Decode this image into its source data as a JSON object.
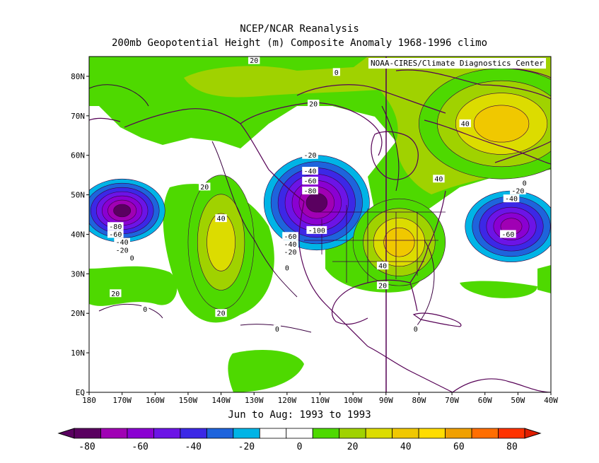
{
  "title_line1": "NCEP/NCAR Reanalysis",
  "title_line2": "200mb Geopotential Height (m) Composite Anomaly 1968-1996 climo",
  "credit": "NOAA-CIRES/Climate Diagnostics Center",
  "subtitle": "Jun to Aug: 1993 to 1993",
  "lat_ticks": [
    "80N",
    "70N",
    "60N",
    "50N",
    "40N",
    "30N",
    "20N",
    "10N",
    "EQ"
  ],
  "lon_ticks": [
    "180",
    "170W",
    "160W",
    "150W",
    "140W",
    "130W",
    "120W",
    "110W",
    "100W",
    "90W",
    "80W",
    "70W",
    "60W",
    "50W",
    "40W"
  ],
  "colorbar": {
    "tick_labels": [
      "-80",
      "-60",
      "-40",
      "-20",
      "0",
      "20",
      "40",
      "60",
      "80"
    ],
    "colors": [
      "#5a0060",
      "#a000b4",
      "#8a00d2",
      "#6c14e6",
      "#3c28e6",
      "#1e64dc",
      "#00b4e6",
      "#ffffff",
      "#ffffff",
      "#4ed900",
      "#a0d200",
      "#dcdc00",
      "#f0c800",
      "#ffdc00",
      "#f0a000",
      "#ff6e00",
      "#ff3200"
    ]
  },
  "contour_labels": [
    {
      "text": "20",
      "lon": -112,
      "lat": 73
    },
    {
      "text": "20",
      "lon": -130,
      "lat": 84
    },
    {
      "text": "0",
      "lon": -105,
      "lat": 81
    },
    {
      "text": "-20",
      "lon": -113,
      "lat": 60
    },
    {
      "text": "-40",
      "lon": -113,
      "lat": 56
    },
    {
      "text": "-60",
      "lon": -113,
      "lat": 53.5
    },
    {
      "text": "-80",
      "lon": -113,
      "lat": 51
    },
    {
      "text": "-100",
      "lon": -111,
      "lat": 41
    },
    {
      "text": "-60",
      "lon": -119,
      "lat": 39.5
    },
    {
      "text": "-40",
      "lon": -119,
      "lat": 37.5
    },
    {
      "text": "-20",
      "lon": -119,
      "lat": 35.5
    },
    {
      "text": "0",
      "lon": -120,
      "lat": 31.5
    },
    {
      "text": "40",
      "lon": -91,
      "lat": 32
    },
    {
      "text": "20",
      "lon": -91,
      "lat": 27
    },
    {
      "text": "20",
      "lon": -145,
      "lat": 52
    },
    {
      "text": "40",
      "lon": -140,
      "lat": 44
    },
    {
      "text": "20",
      "lon": -140,
      "lat": 20
    },
    {
      "text": "20",
      "lon": -172,
      "lat": 25
    },
    {
      "text": "0",
      "lon": -163,
      "lat": 21
    },
    {
      "text": "0",
      "lon": -123,
      "lat": 16
    },
    {
      "text": "0",
      "lon": -81,
      "lat": 16
    },
    {
      "text": "-80",
      "lon": -172,
      "lat": 42
    },
    {
      "text": "-60",
      "lon": -172,
      "lat": 40
    },
    {
      "text": "-40",
      "lon": -170,
      "lat": 38
    },
    {
      "text": "-20",
      "lon": -170,
      "lat": 36
    },
    {
      "text": "0",
      "lon": -167,
      "lat": 34
    },
    {
      "text": "40",
      "lon": -66,
      "lat": 68
    },
    {
      "text": "40",
      "lon": -74,
      "lat": 54
    },
    {
      "text": "0",
      "lon": -48,
      "lat": 53
    },
    {
      "text": "-20",
      "lon": -50,
      "lat": 51
    },
    {
      "text": "-40",
      "lon": -52,
      "lat": 49
    },
    {
      "text": "-60",
      "lon": -53,
      "lat": 40
    }
  ],
  "regions": [
    {
      "name": "low-west-pacific",
      "lon": -170,
      "lat": 46,
      "rx": 13,
      "ry": 8,
      "sign": "neg",
      "levels": [
        "#00b4e6",
        "#1e64dc",
        "#3c28e6",
        "#6c14e6",
        "#8a00d2",
        "#a000b4",
        "#5a0060"
      ]
    },
    {
      "name": "low-northwest-us",
      "lon": -111,
      "lat": 48,
      "rx": 16,
      "ry": 12,
      "sign": "neg",
      "levels": [
        "#00b4e6",
        "#1e64dc",
        "#3c28e6",
        "#6c14e6",
        "#8a00d2",
        "#a000b4",
        "#5a0060"
      ]
    },
    {
      "name": "low-north-atlantic",
      "lon": -52,
      "lat": 42,
      "rx": 14,
      "ry": 9,
      "sign": "neg",
      "levels": [
        "#00b4e6",
        "#1e64dc",
        "#3c28e6",
        "#6c14e6",
        "#8a00d2",
        "#a000b4"
      ]
    },
    {
      "name": "high-pacific",
      "lon": -140,
      "lat": 38,
      "rx": 10,
      "ry": 17,
      "sign": "pos",
      "levels": [
        "#4ed900",
        "#a0d200",
        "#dcdc00"
      ]
    },
    {
      "name": "high-southeast-us",
      "lon": -86,
      "lat": 38,
      "rx": 14,
      "ry": 11,
      "sign": "pos",
      "levels": [
        "#4ed900",
        "#a0d200",
        "#dcdc00",
        "#f0c800"
      ]
    },
    {
      "name": "high-greenland",
      "lon": -55,
      "lat": 68,
      "rx": 25,
      "ry": 14,
      "sign": "pos",
      "levels": [
        "#4ed900",
        "#a0d200",
        "#dcdc00",
        "#f0c800"
      ]
    }
  ]
}
